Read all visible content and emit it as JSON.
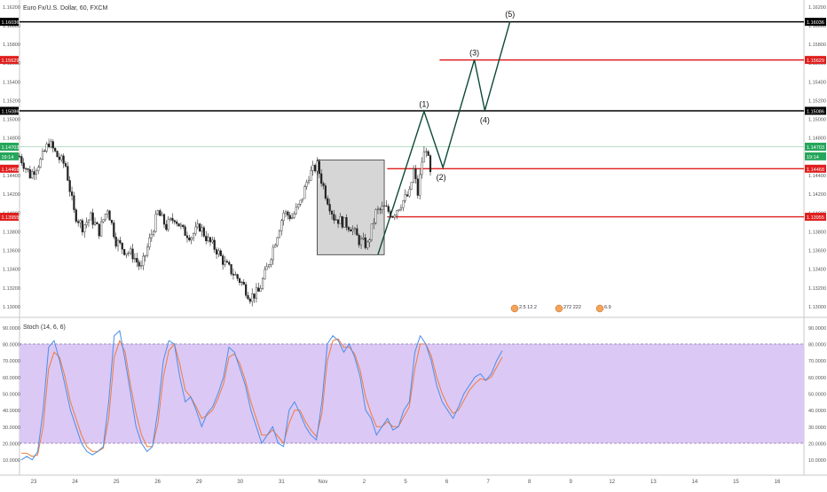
{
  "header": {
    "title": "Euro Fx/U.S. Dollar, 60, FXCM"
  },
  "stoch_panel": {
    "title": "Stoch (14, 6, 6)"
  },
  "colors": {
    "accent_red": "#e01e1e",
    "black_level": "#000000",
    "wave_line": "#0d4a3a",
    "up_candle": "#444444",
    "stoch_k": "#4a8fe7",
    "stoch_d": "#f07a3a",
    "stoch_band": "#dcc8f5",
    "box_fill": "#d6d6d6",
    "current_price_green": "#26a65b"
  },
  "price_axis": {
    "ticks": [
      "1.16200",
      "1.16000",
      "1.15800",
      "1.15600",
      "1.15400",
      "1.15200",
      "1.15000",
      "1.14800",
      "1.14600",
      "1.14400",
      "1.14200",
      "1.14000",
      "1.13800",
      "1.13600",
      "1.13400",
      "1.13200",
      "1.13000"
    ]
  },
  "price_tags": [
    {
      "label": "1.16036",
      "price": 1.16036,
      "color": "#000000"
    },
    {
      "label": "1.15629",
      "price": 1.15629,
      "color": "#e01e1e"
    },
    {
      "label": "1.15086",
      "price": 1.15086,
      "color": "#000000"
    },
    {
      "label": "1.14703",
      "price": 1.14703,
      "color": "#26a65b"
    },
    {
      "label": "19:14",
      "price": 1.146,
      "color": "#26a65b"
    },
    {
      "label": "1.14468",
      "price": 1.14468,
      "color": "#e01e1e"
    },
    {
      "label": "1.13955",
      "price": 1.13955,
      "color": "#e01e1e"
    }
  ],
  "stoch_axis": {
    "ticks": [
      "90.0000",
      "80.0000",
      "70.0000",
      "60.0000",
      "50.0000",
      "40.0000",
      "30.0000",
      "20.0000",
      "10.0000"
    ]
  },
  "time_axis": {
    "labels": [
      "23",
      "24",
      "25",
      "26",
      "29",
      "30",
      "31",
      "Nov",
      "2",
      "5",
      "6",
      "7",
      "8",
      "9",
      "12",
      "13",
      "14",
      "15",
      "16"
    ]
  },
  "wave_labels": [
    "(1)",
    "(2)",
    "(3)",
    "(4)",
    "(5)"
  ],
  "event_badges": [
    "2.5 12.2",
    "272 222",
    "6.9"
  ],
  "chart_data": {
    "type": "candlestick",
    "title": "Euro Fx/U.S. Dollar, 60, FXCM",
    "price_range": [
      1.129,
      1.1625
    ],
    "horizontal_levels": [
      {
        "price": 1.16036,
        "color": "black"
      },
      {
        "price": 1.15629,
        "color": "red"
      },
      {
        "price": 1.15086,
        "color": "black"
      },
      {
        "price": 1.14468,
        "color": "red"
      },
      {
        "price": 1.13955,
        "color": "red"
      }
    ],
    "price_path": [
      [
        0,
        1.146
      ],
      [
        5,
        1.144
      ],
      [
        10,
        1.1455
      ],
      [
        14,
        1.1475
      ],
      [
        18,
        1.146
      ],
      [
        22,
        1.145
      ],
      [
        26,
        1.14
      ],
      [
        30,
        1.1385
      ],
      [
        34,
        1.1395
      ],
      [
        38,
        1.138
      ],
      [
        42,
        1.1405
      ],
      [
        46,
        1.137
      ],
      [
        50,
        1.136
      ],
      [
        54,
        1.1355
      ],
      [
        58,
        1.134
      ],
      [
        62,
        1.137
      ],
      [
        66,
        1.14
      ],
      [
        70,
        1.1385
      ],
      [
        74,
        1.1395
      ],
      [
        78,
        1.138
      ],
      [
        82,
        1.1375
      ],
      [
        86,
        1.1385
      ],
      [
        90,
        1.137
      ],
      [
        94,
        1.136
      ],
      [
        98,
        1.1345
      ],
      [
        102,
        1.1335
      ],
      [
        106,
        1.1325
      ],
      [
        110,
        1.131
      ],
      [
        114,
        1.1315
      ],
      [
        118,
        1.134
      ],
      [
        122,
        1.137
      ],
      [
        126,
        1.14
      ],
      [
        130,
        1.1395
      ],
      [
        134,
        1.141
      ],
      [
        138,
        1.144
      ],
      [
        142,
        1.145
      ],
      [
        146,
        1.142
      ],
      [
        150,
        1.1395
      ],
      [
        154,
        1.139
      ],
      [
        158,
        1.1385
      ],
      [
        162,
        1.137
      ],
      [
        166,
        1.1365
      ],
      [
        170,
        1.14
      ],
      [
        174,
        1.1405
      ],
      [
        178,
        1.1398
      ],
      [
        182,
        1.141
      ],
      [
        186,
        1.142
      ],
      [
        188,
        1.1445
      ],
      [
        190,
        1.142
      ],
      [
        192,
        1.1455
      ],
      [
        194,
        1.147
      ],
      [
        196,
        1.144
      ]
    ],
    "candle_index_range": [
      0,
      196
    ],
    "consolidation_box": {
      "index_range": [
        142,
        174
      ],
      "price_range": [
        1.1355,
        1.1456
      ]
    },
    "elliott_wave": [
      {
        "label": "",
        "index": 171,
        "price": 1.1355
      },
      {
        "label": "(1)",
        "index": 193,
        "price": 1.1508
      },
      {
        "label": "(2)",
        "index": 202,
        "price": 1.1448
      },
      {
        "label": "(3)",
        "index": 217,
        "price": 1.1563
      },
      {
        "label": "(4)",
        "index": 222,
        "price": 1.1509
      },
      {
        "label": "(5)",
        "index": 234,
        "price": 1.1604
      }
    ],
    "stochastic": {
      "name": "Stoch (14, 6, 6)",
      "ylim": [
        5,
        95
      ],
      "bands": [
        20,
        80
      ],
      "k": [
        10,
        12,
        10,
        15,
        40,
        78,
        82,
        70,
        55,
        40,
        30,
        20,
        15,
        13,
        15,
        18,
        45,
        85,
        88,
        70,
        50,
        30,
        20,
        15,
        18,
        40,
        70,
        82,
        80,
        60,
        45,
        48,
        40,
        30,
        38,
        42,
        50,
        60,
        78,
        75,
        65,
        55,
        40,
        30,
        20,
        25,
        30,
        20,
        18,
        40,
        45,
        38,
        30,
        25,
        22,
        45,
        80,
        85,
        82,
        75,
        80,
        72,
        60,
        40,
        35,
        25,
        30,
        35,
        28,
        30,
        40,
        45,
        75,
        85,
        80,
        70,
        55,
        45,
        40,
        35,
        42,
        50,
        55,
        60,
        62,
        58,
        62,
        70,
        76
      ],
      "d": [
        14,
        14,
        12,
        13,
        30,
        65,
        75,
        72,
        60,
        45,
        35,
        25,
        18,
        15,
        15,
        17,
        35,
        72,
        82,
        75,
        55,
        38,
        25,
        18,
        18,
        32,
        60,
        76,
        80,
        68,
        52,
        48,
        42,
        35,
        37,
        40,
        47,
        56,
        72,
        74,
        68,
        58,
        45,
        35,
        25,
        25,
        28,
        24,
        20,
        32,
        40,
        40,
        33,
        28,
        24,
        38,
        70,
        82,
        83,
        78,
        78,
        74,
        64,
        48,
        38,
        30,
        30,
        33,
        30,
        30,
        36,
        42,
        65,
        80,
        80,
        73,
        60,
        50,
        43,
        38,
        40,
        46,
        52,
        56,
        59,
        58,
        60,
        66,
        72
      ]
    }
  }
}
